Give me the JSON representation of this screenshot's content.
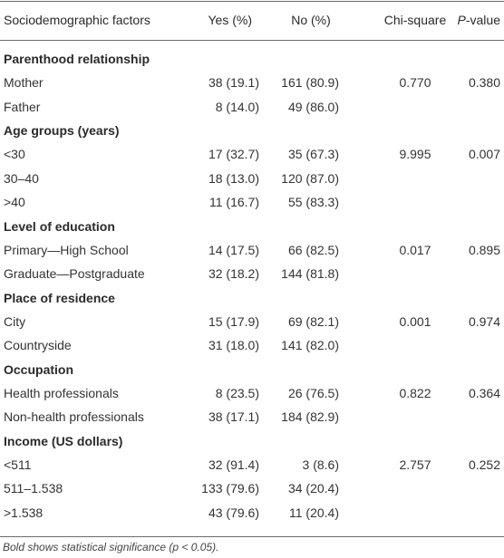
{
  "header": {
    "col1": "Sociodemographic factors",
    "col2": "Yes (%)",
    "col3": "No (%)",
    "col4": "Chi-square",
    "col5_italic": "P",
    "col5_rest": "-value"
  },
  "sections": [
    {
      "title": "Parenthood relationship",
      "rows": [
        {
          "label": "Mother",
          "yes": "38 (19.1)",
          "no": "161 (80.9)",
          "chi": "0.770",
          "p": "0.380"
        },
        {
          "label": "Father",
          "yes": "8 (14.0)",
          "no": "49 (86.0)",
          "chi": "",
          "p": ""
        }
      ]
    },
    {
      "title": "Age groups (years)",
      "rows": [
        {
          "label": "<30",
          "yes": "17 (32.7)",
          "no": "35 (67.3)",
          "chi": "9.995",
          "p": "0.007"
        },
        {
          "label": "30–40",
          "yes": "18 (13.0)",
          "no": "120 (87.0)",
          "chi": "",
          "p": ""
        },
        {
          "label": ">40",
          "yes": "11 (16.7)",
          "no": "55 (83.3)",
          "chi": "",
          "p": ""
        }
      ]
    },
    {
      "title": "Level of education",
      "rows": [
        {
          "label": "Primary—High School",
          "yes": "14 (17.5)",
          "no": "66 (82.5)",
          "chi": "0.017",
          "p": "0.895"
        },
        {
          "label": "Graduate—Postgraduate",
          "yes": "32 (18.2)",
          "no": "144 (81.8)",
          "chi": "",
          "p": ""
        }
      ]
    },
    {
      "title": "Place of residence",
      "rows": [
        {
          "label": "City",
          "yes": "15 (17.9)",
          "no": "69 (82.1)",
          "chi": "0.001",
          "p": "0.974"
        },
        {
          "label": "Countryside",
          "yes": "31 (18.0)",
          "no": "141 (82.0)",
          "chi": "",
          "p": ""
        }
      ]
    },
    {
      "title": "Occupation",
      "rows": [
        {
          "label": "Health professionals",
          "yes": "8 (23.5)",
          "no": "26 (76.5)",
          "chi": "0.822",
          "p": "0.364"
        },
        {
          "label": "Non-health professionals",
          "yes": "38 (17.1)",
          "no": "184 (82.9)",
          "chi": "",
          "p": ""
        }
      ]
    },
    {
      "title": "Income (US dollars)",
      "rows": [
        {
          "label": "<511",
          "yes": "32 (91.4)",
          "no": "3 (8.6)",
          "chi": "2.757",
          "p": "0.252"
        },
        {
          "label": "511–1.538",
          "yes": "133 (79.6)",
          "no": "34 (20.4)",
          "chi": "",
          "p": ""
        },
        {
          "label": ">1.538",
          "yes": "43 (79.6)",
          "no": "11 (20.4)",
          "chi": "",
          "p": ""
        }
      ]
    }
  ],
  "footnote": "Bold shows statistical significance (p < 0.05)."
}
